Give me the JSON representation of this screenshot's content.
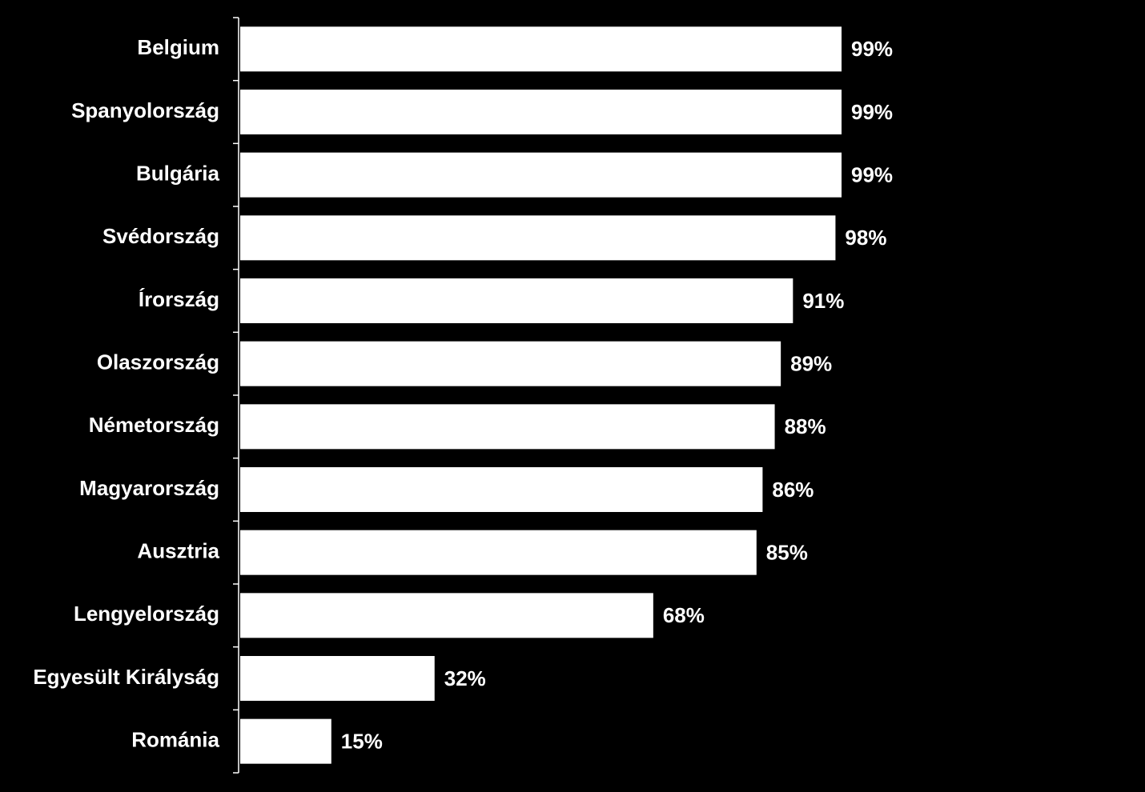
{
  "chart_data": {
    "type": "bar",
    "orientation": "horizontal",
    "categories": [
      "Belgium",
      "Spanyolország",
      "Bulgária",
      "Svédország",
      "Írország",
      "Olaszország",
      "Németország",
      "Magyarország",
      "Ausztria",
      "Lengyelország",
      "Egyesült Királyság",
      "Románia"
    ],
    "values": [
      99,
      99,
      99,
      98,
      91,
      89,
      88,
      86,
      85,
      68,
      32,
      15
    ],
    "value_labels": [
      "99%",
      "99%",
      "99%",
      "98%",
      "91%",
      "89%",
      "88%",
      "86%",
      "85%",
      "68%",
      "32%",
      "15%"
    ],
    "color": "#ffffff"
  }
}
